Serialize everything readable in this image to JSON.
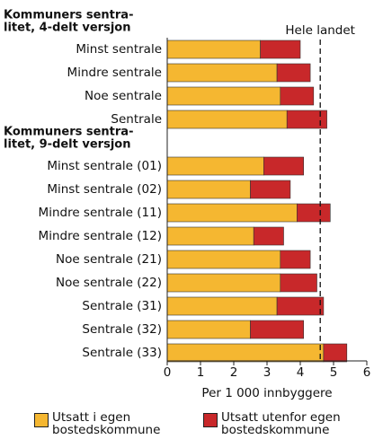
{
  "chart_data": {
    "type": "bar",
    "orientation": "horizontal",
    "stacked": true,
    "groups": [
      {
        "title": [
          "Kommuners sentra-",
          "litet, 4-delt versjon"
        ],
        "categories": [
          "Minst sentrale",
          "Mindre sentrale",
          "Noe sentrale",
          "Sentrale"
        ]
      },
      {
        "title": [
          "Kommuners sentra-",
          "litet, 9-delt versjon"
        ],
        "categories": [
          "Minst sentrale (01)",
          "Minst sentrale (02)",
          "Mindre sentrale (11)",
          "Mindre sentrale (12)",
          "Noe sentrale (21)",
          "Noe sentrale (22)",
          "Sentrale (31)",
          "Sentrale (32)",
          "Sentrale (33)"
        ]
      }
    ],
    "series": [
      {
        "name": "Utsatt i egen bostedskommune",
        "color": "#f5b731",
        "values": [
          [
            2.8,
            3.3,
            3.4,
            3.6
          ],
          [
            2.9,
            2.5,
            3.9,
            2.6,
            3.4,
            3.4,
            3.3,
            2.5,
            4.7
          ]
        ]
      },
      {
        "name": "Utsatt utenfor egen bostedskommune",
        "color": "#c8282a",
        "values": [
          [
            1.2,
            1.0,
            1.0,
            1.2
          ],
          [
            1.2,
            1.2,
            1.0,
            0.9,
            0.9,
            1.1,
            1.4,
            1.6,
            0.7
          ]
        ]
      }
    ],
    "reference": {
      "label": "Hele landet",
      "value": 4.6
    },
    "xlabel": "Per 1 000 innbyggere",
    "xlim": [
      0,
      6
    ],
    "xticks": [
      0,
      1,
      2,
      3,
      4,
      5,
      6
    ]
  }
}
